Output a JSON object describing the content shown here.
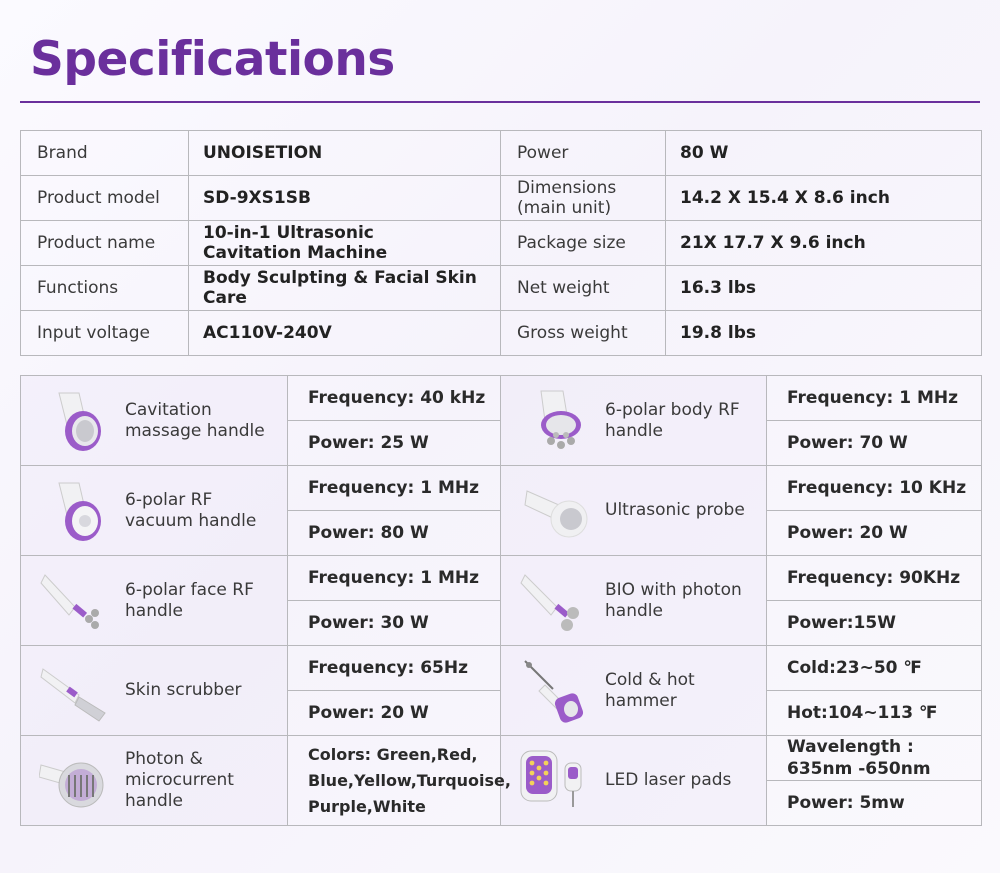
{
  "page": {
    "title": "Specifications"
  },
  "colors": {
    "accent": "#6a2f9c",
    "handle": "#9b5cc9",
    "body": "#f1f1f3"
  },
  "general_specs": [
    {
      "k1": "Brand",
      "v1": "UNOISETION",
      "k2": "Power",
      "v2": "80 W"
    },
    {
      "k1": "Product model",
      "v1": "SD-9XS1SB",
      "k2": "Dimensions\n(main unit)",
      "v2": "14.2 X 15.4 X 8.6 inch"
    },
    {
      "k1": "Product name",
      "v1": "10-in-1 Ultrasonic\nCavitation Machine",
      "k2": "Package size",
      "v2": "21X 17.7 X 9.6 inch"
    },
    {
      "k1": "Functions",
      "v1": "Body Sculpting & Facial Skin Care",
      "k2": "Net weight",
      "v2": "16.3 lbs"
    },
    {
      "k1": "Input voltage",
      "v1": "AC110V-240V",
      "k2": "Gross weight",
      "v2": "19.8 lbs"
    }
  ],
  "handles": [
    {
      "left": {
        "name": "Cavitation\nmassage handle",
        "icon": "cavitation-handle-icon",
        "s1": "Frequency: 40 kHz",
        "s2": "Power: 25 W"
      },
      "right": {
        "name": "6-polar body RF\nhandle",
        "icon": "body-rf-handle-icon",
        "s1": "Frequency: 1 MHz",
        "s2": "Power: 70 W"
      }
    },
    {
      "left": {
        "name": "6-polar RF\nvacuum handle",
        "icon": "rf-vacuum-handle-icon",
        "s1": "Frequency: 1 MHz",
        "s2": "Power: 80 W"
      },
      "right": {
        "name": "Ultrasonic probe",
        "icon": "ultrasonic-probe-icon",
        "s1": "Frequency: 10 KHz",
        "s2": "Power: 20 W"
      }
    },
    {
      "left": {
        "name": "6-polar face RF\nhandle",
        "icon": "face-rf-handle-icon",
        "s1": "Frequency: 1 MHz",
        "s2": "Power: 30 W"
      },
      "right": {
        "name": "BIO with photon\nhandle",
        "icon": "bio-photon-handle-icon",
        "s1": "Frequency: 90KHz",
        "s2": "Power:15W"
      }
    },
    {
      "left": {
        "name": "Skin scrubber",
        "icon": "skin-scrubber-icon",
        "s1": "Frequency: 65Hz",
        "s2": "Power: 20 W"
      },
      "right": {
        "name": "Cold & hot hammer",
        "icon": "cold-hot-hammer-icon",
        "s1": "Cold:23~50 ℉",
        "s2": "Hot:104~113 ℉"
      }
    },
    {
      "left": {
        "name": "Photon &\nmicrocurrent\nhandle",
        "icon": "photon-microcurrent-handle-icon",
        "s1": "Colors: Green,Red,\nBlue,Yellow,Turquoise,\nPurple,White",
        "s2": ""
      },
      "right": {
        "name": "LED laser pads",
        "icon": "led-laser-pads-icon",
        "s1": "Wavelength :\n635nm -650nm",
        "s2": "Power: 5mw"
      }
    }
  ]
}
